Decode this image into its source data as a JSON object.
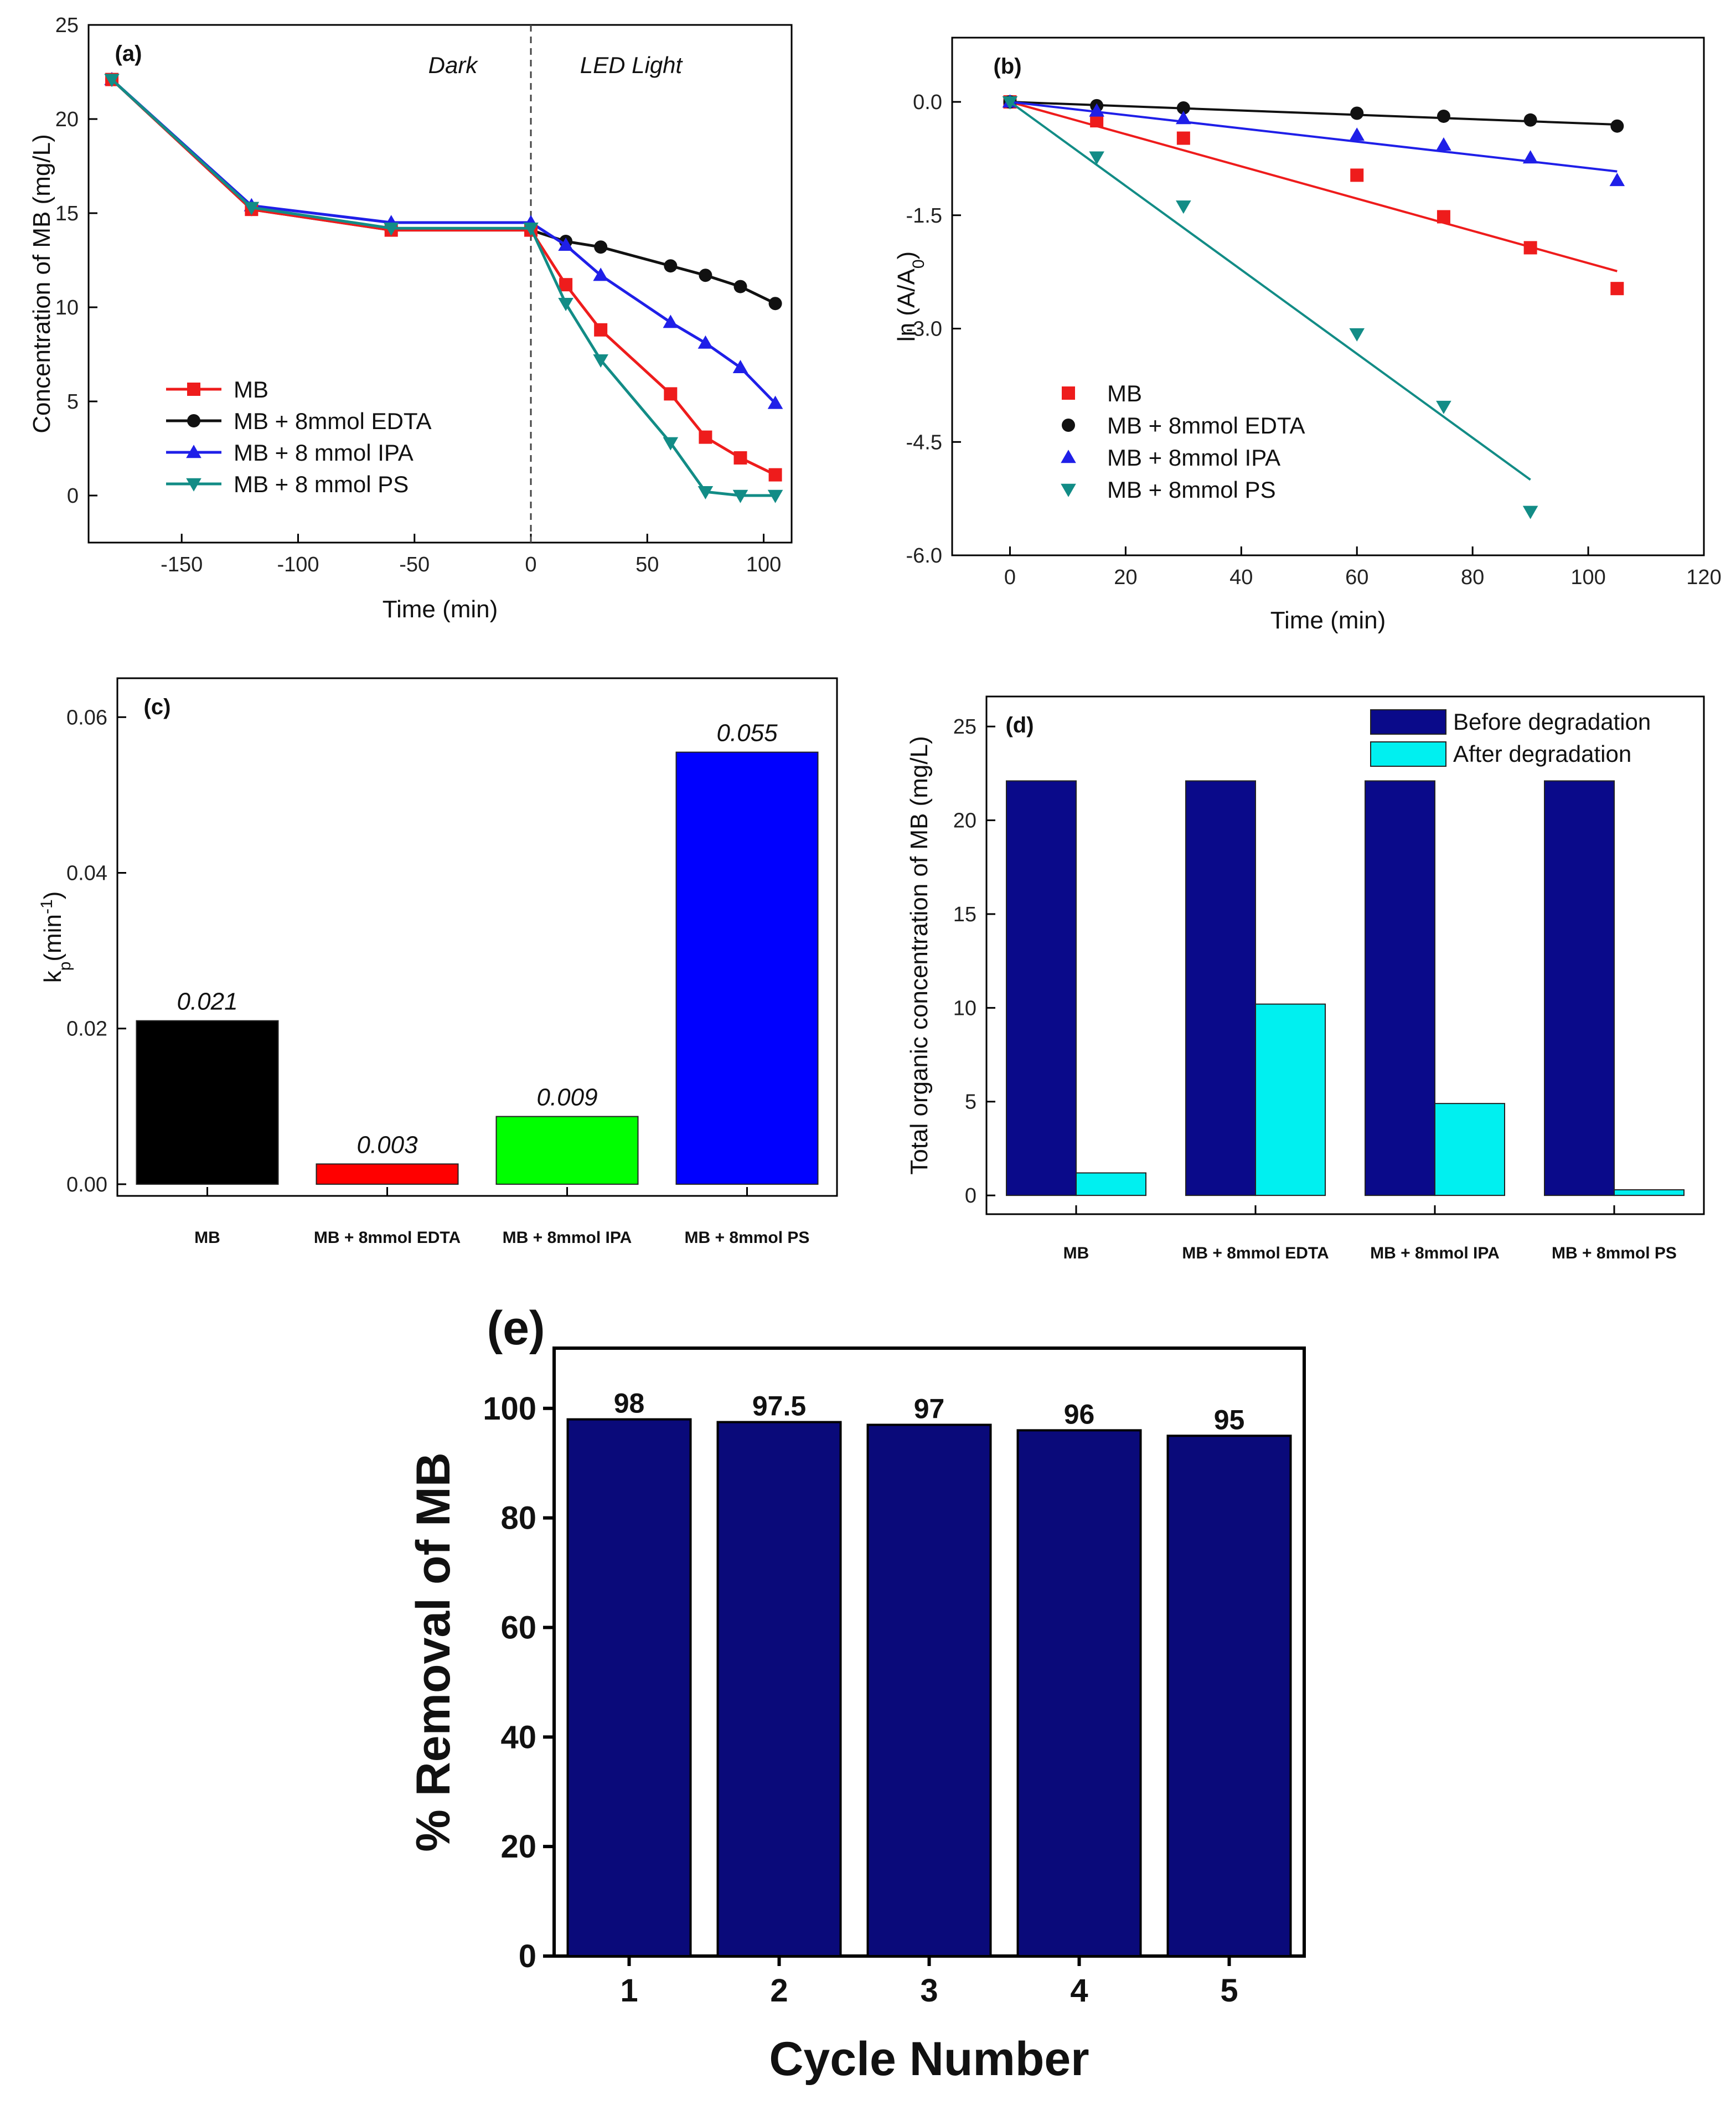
{
  "chart_data": [
    {
      "id": "a",
      "type": "line",
      "panel_label": "(a)",
      "xlabel": "Time (min)",
      "ylabel": "Concentration of MB (mg/L)",
      "xlim": [
        -190,
        112
      ],
      "ylim": [
        -2.5,
        25
      ],
      "xticks": [
        -150,
        -100,
        -50,
        0,
        50,
        100
      ],
      "yticks": [
        0,
        5,
        10,
        15,
        20,
        25
      ],
      "annotations": {
        "dark": "Dark",
        "light": "LED Light"
      },
      "legend_position": "lower-left",
      "series": [
        {
          "name": "MB",
          "color": "#ee1c1c",
          "marker": "square",
          "x": [
            -180,
            -120,
            -60,
            0,
            15,
            30,
            60,
            75,
            90,
            105
          ],
          "y": [
            22.1,
            15.2,
            14.1,
            14.1,
            11.2,
            8.8,
            5.4,
            3.1,
            2.0,
            1.1
          ]
        },
        {
          "name": "MB + 8mmol EDTA",
          "color": "#111111",
          "marker": "circle",
          "x": [
            -180,
            -120,
            -60,
            0,
            15,
            30,
            60,
            75,
            90,
            105
          ],
          "y": [
            22.1,
            15.2,
            14.1,
            14.1,
            13.5,
            13.2,
            12.2,
            11.7,
            11.1,
            10.2
          ]
        },
        {
          "name": "MB + 8 mmol IPA",
          "color": "#1f1fe8",
          "marker": "triangle-up",
          "x": [
            -180,
            -120,
            -60,
            0,
            15,
            30,
            60,
            75,
            90,
            105
          ],
          "y": [
            22.1,
            15.4,
            14.5,
            14.5,
            13.3,
            11.7,
            9.2,
            8.1,
            6.8,
            4.9
          ]
        },
        {
          "name": "MB + 8 mmol PS",
          "color": "#128c86",
          "marker": "triangle-down",
          "x": [
            -180,
            -120,
            -60,
            0,
            15,
            30,
            60,
            75,
            90,
            105
          ],
          "y": [
            22.1,
            15.3,
            14.2,
            14.2,
            10.2,
            7.2,
            2.8,
            0.2,
            0.0,
            0.0
          ]
        }
      ]
    },
    {
      "id": "b",
      "type": "scatter",
      "panel_label": "(b)",
      "xlabel": "Time (min)",
      "ylabel": "ln (A/A",
      "ylabel_sub": "0",
      "ylabel_end": ")",
      "xlim": [
        -10,
        120
      ],
      "ylim": [
        -6.0,
        0.85
      ],
      "xticks": [
        0,
        20,
        40,
        60,
        80,
        100,
        120
      ],
      "yticks": [
        -6.0,
        -4.5,
        -3.0,
        -1.5,
        0.0
      ],
      "yticklabels": [
        "-6.0",
        "-4.5",
        "-3.0",
        "-1.5",
        "0.0"
      ],
      "legend_position": "lower-left",
      "series": [
        {
          "name": "MB",
          "color": "#ee1c1c",
          "marker": "square",
          "x": [
            0,
            15,
            30,
            60,
            75,
            90,
            105
          ],
          "y": [
            0.0,
            -0.25,
            -0.48,
            -0.97,
            -1.52,
            -1.93,
            -2.47
          ],
          "fit": {
            "x": [
              0,
              105
            ],
            "y": [
              0.0,
              -2.24
            ]
          }
        },
        {
          "name": "MB + 8mmol EDTA",
          "color": "#111111",
          "marker": "circle",
          "x": [
            0,
            15,
            30,
            60,
            75,
            90,
            105
          ],
          "y": [
            0.0,
            -0.05,
            -0.08,
            -0.15,
            -0.19,
            -0.24,
            -0.32
          ],
          "fit": {
            "x": [
              0,
              105
            ],
            "y": [
              0.0,
              -0.3
            ]
          }
        },
        {
          "name": "MB + 8mmol IPA",
          "color": "#1f1fe8",
          "marker": "triangle-up",
          "x": [
            0,
            15,
            30,
            60,
            75,
            90,
            105
          ],
          "y": [
            0.0,
            -0.12,
            -0.22,
            -0.44,
            -0.57,
            -0.74,
            -1.04
          ],
          "fit": {
            "x": [
              0,
              105
            ],
            "y": [
              0.0,
              -0.92
            ]
          }
        },
        {
          "name": "MB + 8mmol PS",
          "color": "#128c86",
          "marker": "triangle-down",
          "x": [
            0,
            15,
            30,
            60,
            75,
            90
          ],
          "y": [
            0.0,
            -0.73,
            -1.38,
            -3.07,
            -4.03,
            -5.42
          ],
          "fit": {
            "x": [
              0,
              90
            ],
            "y": [
              0.0,
              -5.0
            ]
          }
        }
      ]
    },
    {
      "id": "c",
      "type": "bar",
      "panel_label": "(c)",
      "ylabel": "k",
      "ylabel_sub": "p",
      "ylabel_mid": "(min",
      "ylabel_sup": "-1",
      "ylabel_end": ")",
      "ylim": [
        -0.0015,
        0.065
      ],
      "yticks": [
        0.0,
        0.02,
        0.04,
        0.06
      ],
      "yticklabels": [
        "0.00",
        "0.02",
        "0.04",
        "0.06"
      ],
      "categories": [
        "MB",
        "MB + 8mmol EDTA",
        "MB + 8mmol IPA",
        "MB + 8mmol PS"
      ],
      "values": [
        0.021,
        0.0026,
        0.0087,
        0.0555
      ],
      "value_labels": [
        "0.021",
        "0.003",
        "0.009",
        "0.055"
      ],
      "colors": [
        "#000000",
        "#ff0000",
        "#00ff00",
        "#0000ff"
      ]
    },
    {
      "id": "d",
      "type": "bar",
      "panel_label": "(d)",
      "ylabel": "Total organic concentration of MB (mg/L)",
      "ylim": [
        -1,
        26.6
      ],
      "yticks": [
        0,
        5,
        10,
        15,
        20,
        25
      ],
      "categories": [
        "MB",
        "MB + 8mmol EDTA",
        "MB + 8mmol IPA",
        "MB + 8mmol PS"
      ],
      "legend_position": "top-right",
      "series": [
        {
          "name": "Before degradation",
          "color": "#0a0a8a",
          "values": [
            22.1,
            22.1,
            22.1,
            22.1
          ]
        },
        {
          "name": "After degradation",
          "color": "#00f0f0",
          "values": [
            1.2,
            10.2,
            4.9,
            0.3
          ]
        }
      ]
    },
    {
      "id": "e",
      "type": "bar",
      "panel_label": "(e)",
      "xlabel": "Cycle Number",
      "ylabel": "% Removal of MB",
      "ylim": [
        0,
        111
      ],
      "yticks": [
        0,
        20,
        40,
        60,
        80,
        100
      ],
      "categories": [
        "1",
        "2",
        "3",
        "4",
        "5"
      ],
      "values": [
        98,
        97.5,
        97,
        96,
        95
      ],
      "value_labels": [
        "98",
        "97.5",
        "97",
        "96",
        "95"
      ],
      "color": "#0a0a7a"
    }
  ]
}
